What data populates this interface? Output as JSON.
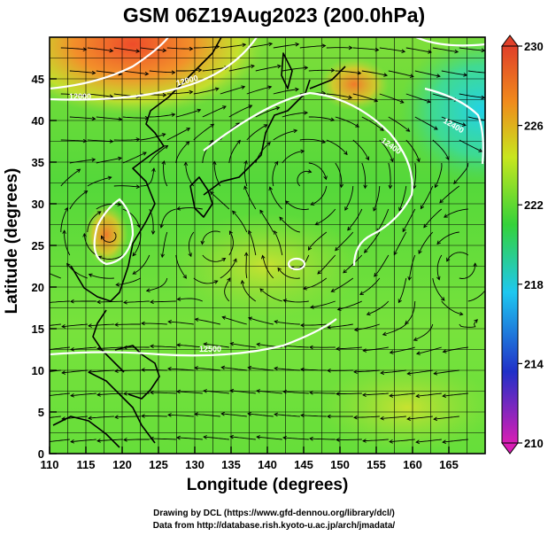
{
  "title": "GSM 06Z19Aug2023 (200.0hPa)",
  "x_axis": {
    "label": "Longitude (degrees)",
    "range": [
      110,
      170
    ],
    "ticks": [
      110,
      115,
      120,
      125,
      130,
      135,
      140,
      145,
      150,
      155,
      160,
      165
    ]
  },
  "y_axis": {
    "label": "Latitude  (degrees)",
    "range": [
      0,
      50
    ],
    "ticks": [
      0,
      5,
      10,
      15,
      20,
      25,
      30,
      35,
      40,
      45
    ]
  },
  "colorbar": {
    "ticks": [
      210,
      214,
      218,
      222,
      226,
      230
    ],
    "range": [
      210,
      230
    ],
    "colors": [
      "#d81eb4",
      "#2030c8",
      "#1ec8f0",
      "#34d23a",
      "#c8e61e",
      "#f08a1c",
      "#e0402a"
    ]
  },
  "contours": {
    "labels": [
      "12000",
      "12000",
      "12400",
      "12400",
      "12500"
    ],
    "color": "#ffffff"
  },
  "features": [
    "streamlines",
    "coastlines",
    "lat-lon grid"
  ],
  "credits": {
    "line1": "Drawing by DCL (https://www.gfd-dennou.org/library/dcl/)",
    "line2": "Data from http://database.rish.kyoto-u.ac.jp/arch/jmadata/"
  }
}
